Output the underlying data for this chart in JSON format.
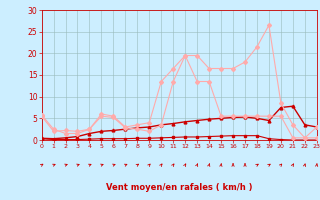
{
  "xlabel": "Vent moyen/en rafales ( km/h )",
  "background_color": "#cceeff",
  "grid_color": "#99bbbb",
  "tick_color": "#cc0000",
  "label_color": "#cc0000",
  "spine_color": "#cc0000",
  "x_ticks": [
    0,
    1,
    2,
    3,
    4,
    5,
    6,
    7,
    8,
    9,
    10,
    11,
    12,
    13,
    14,
    15,
    16,
    17,
    18,
    19,
    20,
    21,
    22,
    23
  ],
  "y_ticks": [
    0,
    5,
    10,
    15,
    20,
    25,
    30
  ],
  "xlim": [
    0,
    23
  ],
  "ylim": [
    0,
    30
  ],
  "series": [
    {
      "x": [
        0,
        1,
        2,
        3,
        4,
        5,
        6,
        7,
        8,
        9,
        10,
        11,
        12,
        13,
        14,
        15,
        16,
        17,
        18,
        19,
        20,
        21,
        22,
        23
      ],
      "y": [
        0.3,
        0.1,
        0.1,
        0.1,
        0.2,
        0.3,
        0.3,
        0.3,
        0.4,
        0.4,
        0.5,
        0.6,
        0.7,
        0.7,
        0.8,
        0.9,
        1.0,
        1.0,
        1.0,
        0.3,
        0.1,
        0.0,
        0.0,
        0.0
      ],
      "color": "#cc0000",
      "lw": 0.8,
      "marker": "s",
      "ms": 1.5,
      "alpha": 1.0
    },
    {
      "x": [
        0,
        1,
        2,
        3,
        4,
        5,
        6,
        7,
        8,
        9,
        10,
        11,
        12,
        13,
        14,
        15,
        16,
        17,
        18,
        19,
        20,
        21,
        22,
        23
      ],
      "y": [
        0.4,
        0.3,
        0.5,
        0.8,
        1.5,
        2.0,
        2.2,
        2.5,
        2.8,
        3.0,
        3.5,
        3.8,
        4.2,
        4.5,
        4.8,
        5.0,
        5.2,
        5.3,
        5.0,
        4.5,
        7.5,
        7.8,
        3.5,
        3.0
      ],
      "color": "#cc0000",
      "lw": 1.0,
      "marker": "^",
      "ms": 2.0,
      "alpha": 1.0
    },
    {
      "x": [
        0,
        1,
        2,
        3,
        4,
        5,
        6,
        7,
        8,
        9,
        10,
        11,
        12,
        13,
        14,
        15,
        16,
        17,
        18,
        19,
        20,
        21,
        22,
        23
      ],
      "y": [
        5.5,
        2.0,
        2.2,
        2.0,
        2.5,
        5.5,
        5.2,
        2.8,
        2.5,
        2.0,
        3.5,
        13.5,
        19.5,
        19.5,
        16.5,
        16.5,
        16.5,
        18.0,
        21.5,
        26.5,
        8.5,
        3.5,
        0.5,
        3.0
      ],
      "color": "#ffaaaa",
      "lw": 0.8,
      "marker": "D",
      "ms": 2.0,
      "alpha": 1.0
    },
    {
      "x": [
        0,
        1,
        2,
        3,
        4,
        5,
        6,
        7,
        8,
        9,
        10,
        11,
        12,
        13,
        14,
        15,
        16,
        17,
        18,
        19,
        20,
        21,
        22,
        23
      ],
      "y": [
        5.8,
        2.5,
        1.5,
        1.5,
        2.5,
        6.0,
        5.5,
        3.0,
        3.5,
        4.0,
        13.5,
        16.5,
        19.5,
        13.5,
        13.5,
        5.5,
        5.5,
        5.5,
        5.5,
        5.5,
        5.5,
        0.5,
        0.5,
        0.5
      ],
      "color": "#ffaaaa",
      "lw": 0.8,
      "marker": "D",
      "ms": 2.0,
      "alpha": 1.0
    }
  ],
  "arrow_angles": [
    45,
    55,
    60,
    60,
    55,
    60,
    60,
    55,
    45,
    30,
    25,
    25,
    20,
    15,
    10,
    5,
    0,
    0,
    45,
    45,
    30,
    20,
    10,
    5
  ],
  "arrow_color": "#cc0000"
}
